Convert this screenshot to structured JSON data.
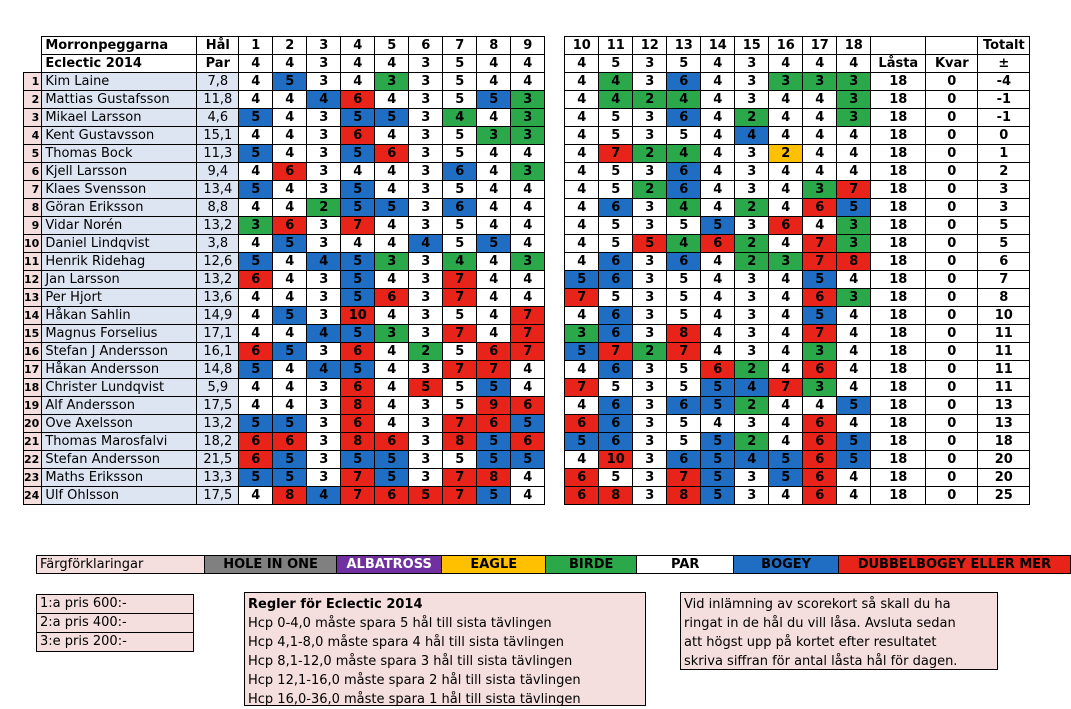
{
  "header": {
    "title1": "Morronpeggarna",
    "title2": "Eclectic 2014",
    "hal_label": "Hål",
    "par_label": "Par",
    "totalt_label": "Totalt",
    "lasta_label": "Låsta",
    "kvar_label": "Kvar",
    "pm_label": "±",
    "holes": [
      "1",
      "2",
      "3",
      "4",
      "5",
      "6",
      "7",
      "8",
      "9",
      "10",
      "11",
      "12",
      "13",
      "14",
      "15",
      "16",
      "17",
      "18"
    ],
    "pars": [
      "4",
      "4",
      "3",
      "4",
      "4",
      "3",
      "5",
      "4",
      "4",
      "4",
      "5",
      "3",
      "5",
      "4",
      "3",
      "4",
      "4",
      "4"
    ]
  },
  "colors": {
    "hole_in_one": "#808080",
    "albatross": "#7030a0",
    "eagle": "#ffc000",
    "birdie": "#2ba84a",
    "par": "#ffffff",
    "bogey": "#1f6ec4",
    "double": "#e8231a"
  },
  "players": [
    {
      "rank": "1",
      "name": "Kim Laine",
      "hcp": "7,8",
      "scores": [
        "4",
        "5",
        "3",
        "4",
        "3",
        "3",
        "5",
        "4",
        "4",
        "4",
        "4",
        "3",
        "6",
        "4",
        "3",
        "3",
        "3",
        "3"
      ],
      "lasta": "18",
      "kvar": "0",
      "pm": "-4"
    },
    {
      "rank": "2",
      "name": "Mattias Gustafsson",
      "hcp": "11,8",
      "scores": [
        "4",
        "4",
        "4",
        "6",
        "4",
        "3",
        "5",
        "5",
        "3",
        "4",
        "4",
        "2",
        "4",
        "4",
        "3",
        "4",
        "4",
        "3"
      ],
      "lasta": "18",
      "kvar": "0",
      "pm": "-1"
    },
    {
      "rank": "3",
      "name": "Mikael Larsson",
      "hcp": "4,6",
      "scores": [
        "5",
        "4",
        "3",
        "5",
        "5",
        "3",
        "4",
        "4",
        "3",
        "4",
        "5",
        "3",
        "6",
        "4",
        "2",
        "4",
        "4",
        "3"
      ],
      "lasta": "18",
      "kvar": "0",
      "pm": "-1"
    },
    {
      "rank": "4",
      "name": "Kent Gustavsson",
      "hcp": "15,1",
      "scores": [
        "4",
        "4",
        "3",
        "6",
        "4",
        "3",
        "5",
        "3",
        "3",
        "4",
        "5",
        "3",
        "5",
        "4",
        "4",
        "4",
        "4",
        "4"
      ],
      "lasta": "18",
      "kvar": "0",
      "pm": "0"
    },
    {
      "rank": "5",
      "name": "Thomas Bock",
      "hcp": "11,3",
      "scores": [
        "5",
        "4",
        "3",
        "5",
        "6",
        "3",
        "5",
        "4",
        "4",
        "4",
        "7",
        "2",
        "4",
        "4",
        "3",
        "2",
        "4",
        "4"
      ],
      "lasta": "18",
      "kvar": "0",
      "pm": "1"
    },
    {
      "rank": "6",
      "name": "Kjell Larsson",
      "hcp": "9,4",
      "scores": [
        "4",
        "6",
        "3",
        "4",
        "4",
        "3",
        "6",
        "4",
        "3",
        "4",
        "5",
        "3",
        "6",
        "4",
        "3",
        "4",
        "4",
        "4"
      ],
      "lasta": "18",
      "kvar": "0",
      "pm": "2"
    },
    {
      "rank": "7",
      "name": "Klaes Svensson",
      "hcp": "13,4",
      "scores": [
        "5",
        "4",
        "3",
        "5",
        "4",
        "3",
        "5",
        "4",
        "4",
        "4",
        "5",
        "2",
        "6",
        "4",
        "3",
        "4",
        "3",
        "7"
      ],
      "lasta": "18",
      "kvar": "0",
      "pm": "3"
    },
    {
      "rank": "8",
      "name": "Göran Eriksson",
      "hcp": "8,8",
      "scores": [
        "4",
        "4",
        "2",
        "5",
        "5",
        "3",
        "6",
        "4",
        "4",
        "4",
        "6",
        "3",
        "4",
        "4",
        "2",
        "4",
        "6",
        "5"
      ],
      "lasta": "18",
      "kvar": "0",
      "pm": "3"
    },
    {
      "rank": "9",
      "name": "Vidar Norén",
      "hcp": "13,2",
      "scores": [
        "3",
        "6",
        "3",
        "7",
        "4",
        "3",
        "5",
        "4",
        "4",
        "4",
        "5",
        "3",
        "5",
        "5",
        "3",
        "6",
        "4",
        "3"
      ],
      "lasta": "18",
      "kvar": "0",
      "pm": "5"
    },
    {
      "rank": "10",
      "name": "Daniel Lindqvist",
      "hcp": "3,8",
      "scores": [
        "4",
        "5",
        "3",
        "4",
        "4",
        "4",
        "5",
        "5",
        "4",
        "4",
        "5",
        "5",
        "4",
        "6",
        "2",
        "4",
        "7",
        "3"
      ],
      "lasta": "18",
      "kvar": "0",
      "pm": "5"
    },
    {
      "rank": "11",
      "name": "Henrik Ridehag",
      "hcp": "12,6",
      "scores": [
        "5",
        "4",
        "4",
        "5",
        "3",
        "3",
        "4",
        "4",
        "3",
        "4",
        "6",
        "3",
        "6",
        "4",
        "2",
        "3",
        "7",
        "8"
      ],
      "lasta": "18",
      "kvar": "0",
      "pm": "6"
    },
    {
      "rank": "12",
      "name": "Jan Larsson",
      "hcp": "13,2",
      "scores": [
        "6",
        "4",
        "3",
        "5",
        "4",
        "3",
        "7",
        "4",
        "4",
        "5",
        "6",
        "3",
        "5",
        "4",
        "3",
        "4",
        "5",
        "4"
      ],
      "lasta": "18",
      "kvar": "0",
      "pm": "7"
    },
    {
      "rank": "13",
      "name": "Per Hjort",
      "hcp": "13,6",
      "scores": [
        "4",
        "4",
        "3",
        "5",
        "6",
        "3",
        "7",
        "4",
        "4",
        "7",
        "5",
        "3",
        "5",
        "4",
        "3",
        "4",
        "6",
        "3"
      ],
      "lasta": "18",
      "kvar": "0",
      "pm": "8"
    },
    {
      "rank": "14",
      "name": "Håkan Sahlin",
      "hcp": "14,9",
      "scores": [
        "4",
        "5",
        "3",
        "10",
        "4",
        "3",
        "5",
        "4",
        "7",
        "4",
        "6",
        "3",
        "5",
        "4",
        "3",
        "4",
        "5",
        "4"
      ],
      "lasta": "18",
      "kvar": "0",
      "pm": "10"
    },
    {
      "rank": "15",
      "name": "Magnus Forselius",
      "hcp": "17,1",
      "scores": [
        "4",
        "4",
        "4",
        "5",
        "3",
        "3",
        "7",
        "4",
        "7",
        "3",
        "6",
        "3",
        "8",
        "4",
        "3",
        "4",
        "7",
        "4"
      ],
      "lasta": "18",
      "kvar": "0",
      "pm": "11"
    },
    {
      "rank": "16",
      "name": "Stefan J Andersson",
      "hcp": "16,1",
      "scores": [
        "6",
        "5",
        "3",
        "6",
        "4",
        "2",
        "5",
        "6",
        "7",
        "5",
        "7",
        "2",
        "7",
        "4",
        "3",
        "4",
        "3",
        "4"
      ],
      "lasta": "18",
      "kvar": "0",
      "pm": "11"
    },
    {
      "rank": "17",
      "name": "Håkan Andersson",
      "hcp": "14,8",
      "scores": [
        "5",
        "4",
        "4",
        "5",
        "4",
        "3",
        "7",
        "7",
        "4",
        "4",
        "6",
        "3",
        "5",
        "6",
        "2",
        "4",
        "6",
        "4"
      ],
      "lasta": "18",
      "kvar": "0",
      "pm": "11"
    },
    {
      "rank": "18",
      "name": "Christer Lundqvist",
      "hcp": "5,9",
      "scores": [
        "4",
        "4",
        "3",
        "6",
        "4",
        "5",
        "5",
        "5",
        "4",
        "7",
        "5",
        "3",
        "5",
        "5",
        "4",
        "7",
        "3",
        "4"
      ],
      "lasta": "18",
      "kvar": "0",
      "pm": "11"
    },
    {
      "rank": "19",
      "name": "Alf Andersson",
      "hcp": "17,5",
      "scores": [
        "4",
        "4",
        "3",
        "8",
        "4",
        "3",
        "5",
        "9",
        "6",
        "4",
        "6",
        "3",
        "6",
        "5",
        "2",
        "4",
        "4",
        "5"
      ],
      "lasta": "18",
      "kvar": "0",
      "pm": "13"
    },
    {
      "rank": "20",
      "name": "Ove Axelsson",
      "hcp": "13,2",
      "scores": [
        "5",
        "5",
        "3",
        "6",
        "4",
        "3",
        "7",
        "6",
        "5",
        "6",
        "6",
        "3",
        "5",
        "4",
        "3",
        "4",
        "6",
        "4"
      ],
      "lasta": "18",
      "kvar": "0",
      "pm": "13"
    },
    {
      "rank": "21",
      "name": "Thomas Marosfalvi",
      "hcp": "18,2",
      "scores": [
        "6",
        "6",
        "3",
        "8",
        "6",
        "3",
        "8",
        "5",
        "6",
        "5",
        "6",
        "3",
        "5",
        "5",
        "2",
        "4",
        "6",
        "5"
      ],
      "lasta": "18",
      "kvar": "0",
      "pm": "18"
    },
    {
      "rank": "22",
      "name": "Stefan Andersson",
      "hcp": "21,5",
      "scores": [
        "6",
        "5",
        "3",
        "5",
        "5",
        "3",
        "5",
        "5",
        "5",
        "4",
        "10",
        "3",
        "6",
        "5",
        "4",
        "5",
        "6",
        "5"
      ],
      "lasta": "18",
      "kvar": "0",
      "pm": "20"
    },
    {
      "rank": "23",
      "name": "Maths Eriksson",
      "hcp": "13,3",
      "scores": [
        "5",
        "5",
        "3",
        "7",
        "5",
        "3",
        "7",
        "8",
        "4",
        "6",
        "5",
        "3",
        "7",
        "5",
        "3",
        "5",
        "6",
        "4"
      ],
      "lasta": "18",
      "kvar": "0",
      "pm": "20"
    },
    {
      "rank": "24",
      "name": "Ulf Ohlsson",
      "hcp": "17,5",
      "scores": [
        "4",
        "8",
        "4",
        "7",
        "6",
        "5",
        "7",
        "5",
        "4",
        "6",
        "8",
        "3",
        "8",
        "5",
        "3",
        "4",
        "6",
        "4"
      ],
      "lasta": "18",
      "kvar": "0",
      "pm": "25"
    }
  ],
  "legend": {
    "label": "Färgförklaringar",
    "items": [
      "HOLE IN ONE",
      "ALBATROSS",
      "EAGLE",
      "BIRDE",
      "PAR",
      "BOGEY",
      "DUBBELBOGEY ELLER MER"
    ]
  },
  "prizes": [
    "1:a pris 600:-",
    "2:a pris 400:-",
    "3:e pris 200:-"
  ],
  "rules": {
    "title": "Regler för Eclectic 2014",
    "lines": [
      "Hcp 0-4,0 måste spara 5 hål till sista tävlingen",
      "Hcp 4,1-8,0 måste spara 4 hål till sista tävlingen",
      "Hcp 8,1-12,0 måste spara 3 hål till sista tävlingen",
      "Hcp 12,1-16,0 måste spara 2 hål till sista tävlingen",
      "Hcp 16,0-36,0 måste spara 1 hål till sista tävlingen"
    ]
  },
  "note": [
    "Vid inlämning av scorekort så skall du ha",
    "ringat in de hål du vill låsa. Avsluta sedan",
    "att högst upp på kortet efter resultatet",
    "skriva siffran för antal låsta hål för dagen."
  ]
}
